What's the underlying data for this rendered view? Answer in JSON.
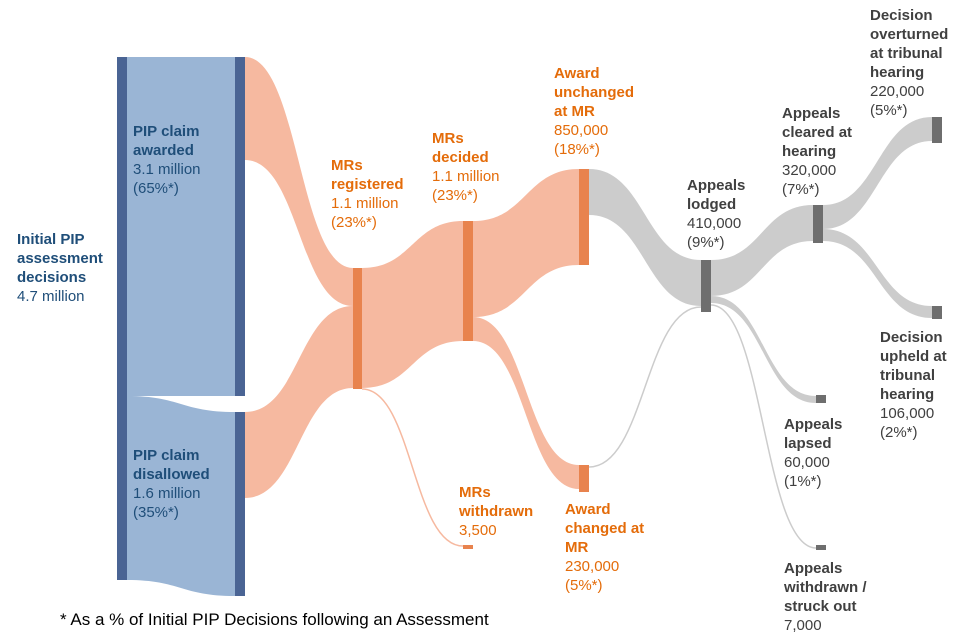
{
  "colors": {
    "blue_node": "#4a6494",
    "blue_flow": "#9ab5d5",
    "orange_node": "#e8834e",
    "orange_flow": "#f6b9a0",
    "grey_node": "#6e6e6e",
    "grey_flow": "#cccccc",
    "blue_text": "#1f4e79",
    "orange_text": "#e46c0a",
    "grey_text": "#404040"
  },
  "nodes": {
    "initial": {
      "title": "Initial PIP\nassessment\ndecisions",
      "value": "4.7 million"
    },
    "awarded": {
      "title": "PIP claim\nawarded",
      "value": "3.1 million\n(65%*)"
    },
    "disallowed": {
      "title": "PIP claim\ndisallowed",
      "value": "1.6 million\n(35%*)"
    },
    "mrs_registered": {
      "title": "MRs\nregistered",
      "value": "1.1 million\n(23%*)"
    },
    "mrs_decided": {
      "title": "MRs\ndecided",
      "value": "1.1 million\n(23%*)"
    },
    "mrs_withdrawn": {
      "title": "MRs\nwithdrawn",
      "value": "3,500"
    },
    "award_unchanged": {
      "title": "Award\nunchanged\nat MR",
      "value": "850,000\n(18%*)"
    },
    "award_changed": {
      "title": "Award\nchanged at\nMR",
      "value": "230,000\n(5%*)"
    },
    "appeals_lodged": {
      "title": "Appeals\nlodged",
      "value": "410,000\n(9%*)"
    },
    "appeals_cleared": {
      "title": "Appeals\ncleared at\nhearing",
      "value": "320,000\n(7%*)"
    },
    "appeals_lapsed": {
      "title": "Appeals\nlapsed",
      "value": "60,000\n(1%*)"
    },
    "appeals_withdrawn": {
      "title": "Appeals\nwithdrawn /\nstruck out",
      "value": "7,000"
    },
    "overturned": {
      "title": "Decision\noverturned\nat tribunal\nhearing",
      "value": "220,000\n(5%*)"
    },
    "upheld": {
      "title": "Decision\nupheld at\ntribunal\nhearing",
      "value": "106,000\n(2%*)"
    }
  },
  "footnote": "* As a % of Initial PIP Decisions following an Assessment"
}
